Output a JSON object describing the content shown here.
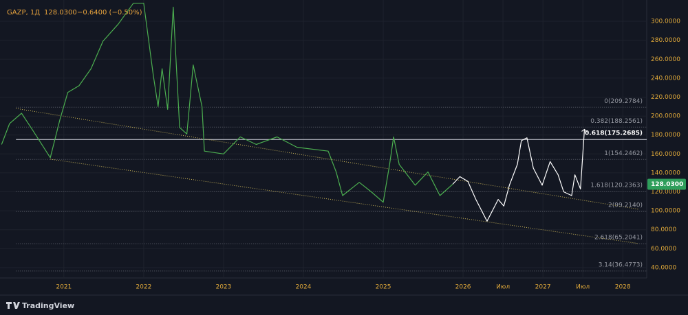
{
  "chart_data": {
    "type": "line",
    "header": {
      "symbol": "GAZP, 1Д",
      "price": "128.0300",
      "change": "−0.6400 (−0.50%)"
    },
    "brand": "TradingView",
    "last_price": 128.03,
    "xlim": [
      2020.2,
      2028.3
    ],
    "ylim": [
      29.1,
      322.5
    ],
    "xticks": [
      2021,
      2022,
      2023,
      2024,
      2025,
      2026,
      {
        "value": 2026.5,
        "label": "Июл"
      },
      2027,
      {
        "value": 2027.5,
        "label": "Июл"
      },
      2028
    ],
    "yticks": [
      {
        "value": 40,
        "label": "40.0000"
      },
      {
        "value": 60,
        "label": "60.0000"
      },
      {
        "value": 80,
        "label": "80.0000"
      },
      {
        "value": 100,
        "label": "100.0000"
      },
      {
        "value": 120,
        "label": "120.0000"
      },
      {
        "value": 140,
        "label": "140.0000"
      },
      {
        "value": 160,
        "label": "160.0000"
      },
      {
        "value": 180,
        "label": "180.0000"
      },
      {
        "value": 200,
        "label": "200.0000"
      },
      {
        "value": 220,
        "label": "220.0000"
      },
      {
        "value": 240,
        "label": "240.0000"
      },
      {
        "value": 260,
        "label": "260.0000"
      },
      {
        "value": 280,
        "label": "280.0000"
      },
      {
        "value": 300,
        "label": "300.0000"
      }
    ],
    "grid": true,
    "series": [
      {
        "color": "#4caf50",
        "x": [
          2020.22,
          2020.32,
          2020.47,
          2020.61,
          2020.83,
          2020.95,
          2021.05,
          2021.19,
          2021.34,
          2021.49,
          2021.68,
          2021.87,
          2022,
          2022.12,
          2022.18,
          2022.23,
          2022.3,
          2022.37,
          2022.45,
          2022.54,
          2022.62,
          2022.73,
          2022.76,
          2023,
          2023.21,
          2023.41,
          2023.67,
          2023.92,
          2024.31,
          2024.41,
          2024.49,
          2024.7,
          2024.85,
          2025,
          2025.08,
          2025.13,
          2025.2,
          2025.4,
          2025.56,
          2025.71,
          2025.87
        ],
        "values": [
          170,
          192,
          203,
          185,
          156,
          196,
          225,
          232,
          250,
          279,
          297,
          319,
          319,
          243,
          210,
          250,
          207,
          315,
          188,
          181,
          254,
          210,
          163,
          160,
          178,
          170,
          178,
          167,
          163,
          141,
          116,
          130,
          120,
          109,
          149,
          178,
          149,
          127,
          141,
          116,
          128.03
        ]
      },
      {
        "color": "#ffffff",
        "x": [
          2025.87,
          2025.96,
          2026.06,
          2026.16,
          2026.3,
          2026.44,
          2026.51,
          2026.58,
          2026.68,
          2026.73,
          2026.8,
          2026.88,
          2026.99,
          2027.09,
          2027.19,
          2027.26,
          2027.36,
          2027.4,
          2027.47,
          2027.52
        ],
        "values": [
          128.03,
          136,
          131,
          112,
          89,
          112,
          105,
          127,
          149,
          174,
          177,
          145,
          127,
          152,
          138,
          120,
          116,
          138,
          123,
          186
        ]
      }
    ],
    "channel": [
      {
        "color": "#c9b458",
        "x": [
          2020.4,
          2028.2
        ],
        "values": [
          208,
          101.6
        ]
      },
      {
        "color": "#c9b458",
        "x": [
          2020.83,
          2028.2
        ],
        "values": [
          154.5,
          65.4
        ]
      }
    ],
    "fib_start": 2020.4,
    "fib_levels": [
      {
        "value": 209.2784,
        "label": "0(209.2784)"
      },
      {
        "value": 188.2561,
        "label": "0.382(188.2561)"
      },
      {
        "value": 175.2685,
        "label": "0.618(175.2685)",
        "highlight": true
      },
      {
        "value": 154.2462,
        "label": "1(154.2462)"
      },
      {
        "value": 120.2363,
        "label": "1.618(120.2363)"
      },
      {
        "value": 99.214,
        "label": "2(99.2140)"
      },
      {
        "value": 65.2041,
        "label": "2.618(65.2041)"
      },
      {
        "value": 36.4773,
        "label": "3.14(36.4773)"
      }
    ]
  }
}
